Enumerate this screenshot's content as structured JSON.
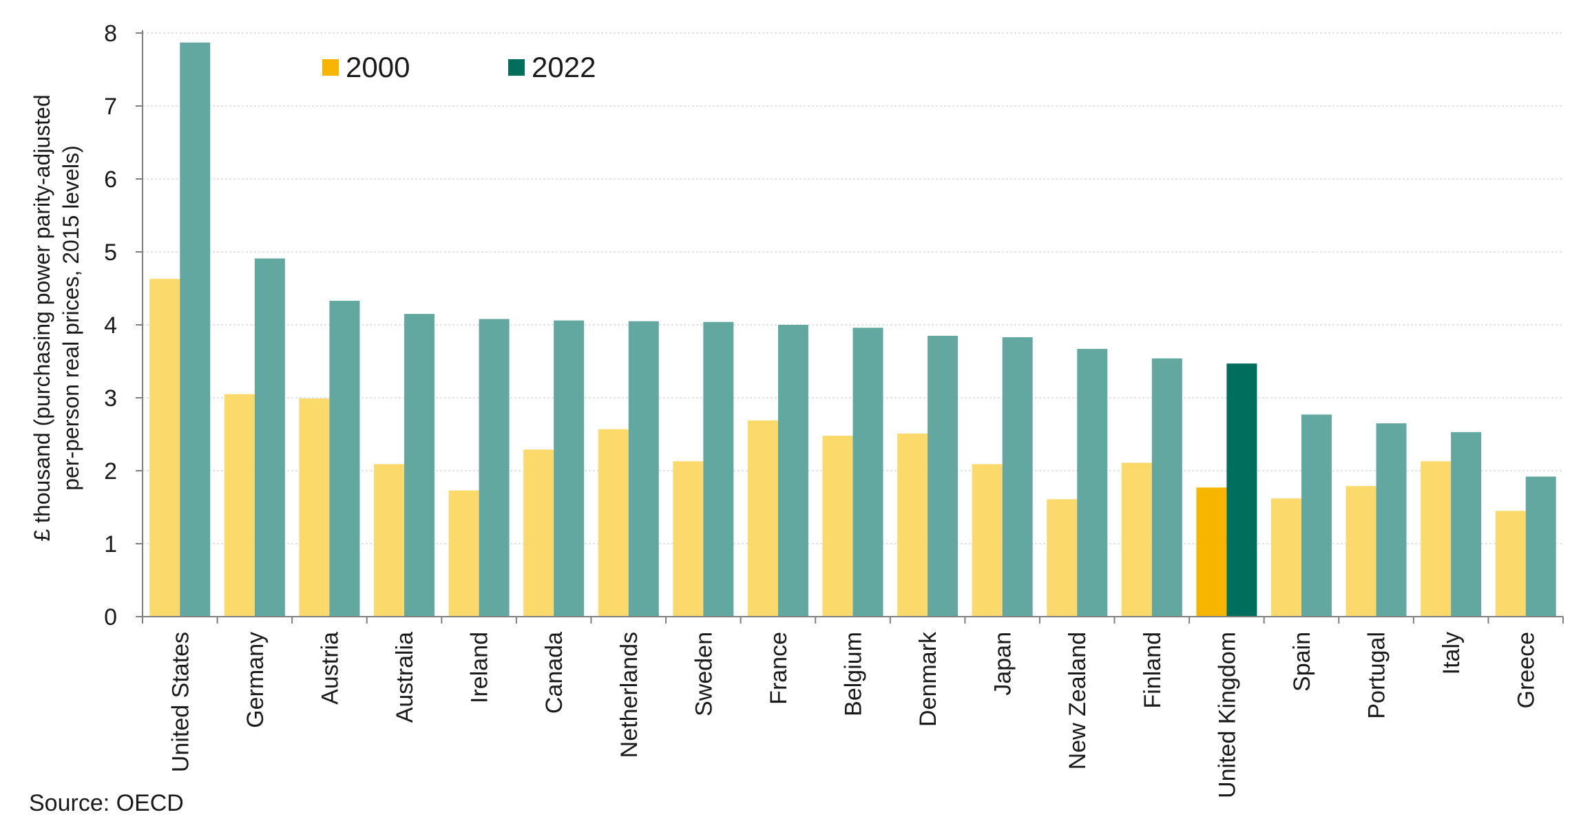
{
  "chart_data": {
    "type": "bar",
    "ylabel_line1": "£ thousand (purchasing power parity-adjusted",
    "ylabel_line2": "per-person real prices, 2015 levels)",
    "ylim": [
      0,
      8
    ],
    "yticks": [
      0,
      1,
      2,
      3,
      4,
      5,
      6,
      7,
      8
    ],
    "grid": true,
    "legend_position": "top-left",
    "categories": [
      "United States",
      "Germany",
      "Austria",
      "Australia",
      "Ireland",
      "Canada",
      "Netherlands",
      "Sweden",
      "France",
      "Belgium",
      "Denmark",
      "Japan",
      "New Zealand",
      "Finland",
      "United Kingdom",
      "Spain",
      "Portugal",
      "Italy",
      "Greece"
    ],
    "series": [
      {
        "name": "2000",
        "color": "#fcd96b",
        "values": [
          4.63,
          3.05,
          2.99,
          2.09,
          1.73,
          2.29,
          2.57,
          2.13,
          2.69,
          2.48,
          2.51,
          2.09,
          1.61,
          2.11,
          1.77,
          1.62,
          1.79,
          2.13,
          1.45
        ]
      },
      {
        "name": "2022",
        "color": "#63a8a0",
        "values": [
          7.87,
          4.91,
          4.33,
          4.15,
          4.08,
          4.06,
          4.05,
          4.04,
          4.0,
          3.96,
          3.85,
          3.83,
          3.67,
          3.54,
          3.47,
          2.77,
          2.65,
          2.53,
          1.92
        ]
      }
    ],
    "highlight": {
      "category": "United Kingdom",
      "colors": {
        "2000": "#f7b500",
        "2022": "#006e5c"
      }
    }
  },
  "legend": {
    "items": [
      {
        "label": "2000",
        "color": "#f7b500"
      },
      {
        "label": "2022",
        "color": "#006e5c"
      }
    ]
  },
  "source": "Source: OECD"
}
